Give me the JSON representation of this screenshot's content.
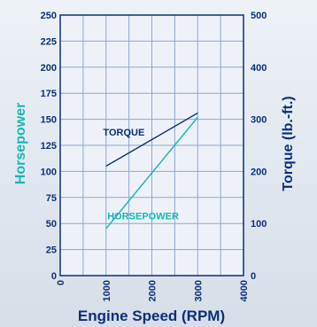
{
  "chart_data": {
    "type": "line",
    "xlabel": "Engine Speed (RPM)",
    "ylabel_left": "Horsepower",
    "ylabel_right": "Torque (lb.-ft.)",
    "x_ticks": [
      "0",
      "1000",
      "2000",
      "3000",
      "4000"
    ],
    "y_left_ticks": [
      "0",
      "25",
      "50",
      "75",
      "100",
      "125",
      "150",
      "175",
      "200",
      "225",
      "250"
    ],
    "y_right_ticks": [
      "0",
      "100",
      "200",
      "300",
      "400",
      "500"
    ],
    "xlim": [
      0,
      4000
    ],
    "ylim_left": [
      0,
      250
    ],
    "ylim_right": [
      0,
      500
    ],
    "grid": true,
    "series": [
      {
        "name": "TORQUE",
        "axis": "right",
        "x": [
          1000,
          3000
        ],
        "y": [
          210,
          312
        ]
      },
      {
        "name": "HORSEPOWER",
        "axis": "left",
        "x": [
          1000,
          3000
        ],
        "y": [
          45,
          152
        ]
      }
    ]
  },
  "colors": {
    "primary": "#0a2f7a",
    "accent": "#13b8b3",
    "grid": "#8ea4cf",
    "frame": "#0a2f7a"
  }
}
